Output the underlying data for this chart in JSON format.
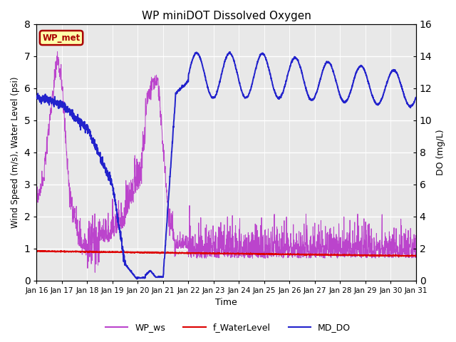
{
  "title": "WP miniDOT Dissolved Oxygen",
  "xlabel": "Time",
  "ylabel_left": "Wind Speed (m/s), Water Level (psi)",
  "ylabel_right": "DO (mg/L)",
  "ylim_left": [
    0.0,
    8.0
  ],
  "ylim_right": [
    0,
    16
  ],
  "yticks_left": [
    0.0,
    1.0,
    2.0,
    3.0,
    4.0,
    5.0,
    6.0,
    7.0,
    8.0
  ],
  "yticks_right": [
    0,
    2,
    4,
    6,
    8,
    10,
    12,
    14,
    16
  ],
  "xtick_labels": [
    "Jan 16",
    "Jan 17",
    "Jan 18",
    "Jan 19",
    "Jan 20",
    "Jan 21",
    "Jan 22",
    "Jan 23",
    "Jan 24",
    "Jan 25",
    "Jan 26",
    "Jan 27",
    "Jan 28",
    "Jan 29",
    "Jan 30",
    "Jan 31"
  ],
  "color_ws": "#bb44cc",
  "color_wl": "#dd0000",
  "color_do": "#2222cc",
  "legend_label_ws": "WP_ws",
  "legend_label_wl": "f_WaterLevel",
  "legend_label_do": "MD_DO",
  "annotation_text": "WP_met",
  "annotation_color": "#aa0000",
  "annotation_bg": "#ffffaa",
  "plot_bg_color": "#e8e8e8",
  "n_days": 15,
  "seed": 42
}
